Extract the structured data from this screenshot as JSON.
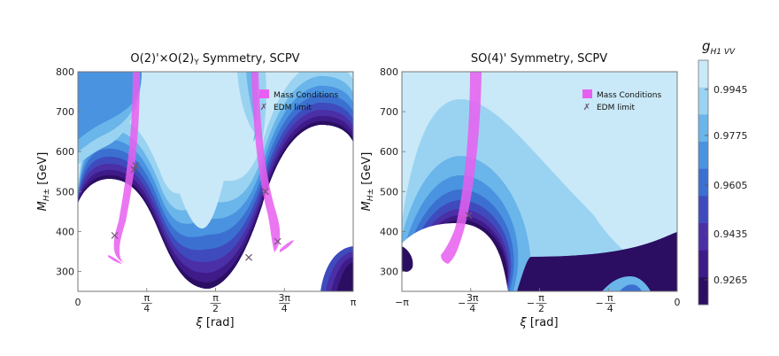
{
  "chart_data": [
    {
      "type": "contour",
      "title": "O(2)'×O(2)_Y Symmetry, SCPV",
      "xlabel": "ξ [rad]",
      "ylabel": "M_H± [GeV]",
      "xlim": [
        0,
        3.1416
      ],
      "ylim": [
        250,
        800
      ],
      "x_ticks": [
        {
          "value": 0,
          "label": "0"
        },
        {
          "value": 0.7854,
          "label": "π/4"
        },
        {
          "value": 1.5708,
          "label": "π/2"
        },
        {
          "value": 2.3562,
          "label": "3π/4"
        },
        {
          "value": 3.1416,
          "label": "π"
        }
      ],
      "y_ticks": [
        {
          "value": 300,
          "label": "300"
        },
        {
          "value": 400,
          "label": "400"
        },
        {
          "value": 500,
          "label": "500"
        },
        {
          "value": 600,
          "label": "600"
        },
        {
          "value": 700,
          "label": "700"
        },
        {
          "value": 800,
          "label": "800"
        }
      ],
      "legend": {
        "mass": "Mass Conditions",
        "edm": "EDM limit",
        "placement": "top-right"
      },
      "edm_points": [
        {
          "x": 0.42,
          "y": 390
        },
        {
          "x": 0.64,
          "y": 555
        },
        {
          "x": 0.66,
          "y": 565
        },
        {
          "x": 2.14,
          "y": 500
        },
        {
          "x": 1.95,
          "y": 335
        },
        {
          "x": 2.28,
          "y": 375
        }
      ]
    },
    {
      "type": "contour",
      "title": "SO(4)' Symmetry, SCPV",
      "xlabel": "ξ [rad]",
      "ylabel": "M_H± [GeV]",
      "xlim": [
        -3.1416,
        0
      ],
      "ylim": [
        250,
        800
      ],
      "x_ticks": [
        {
          "value": -3.1416,
          "label": "−π"
        },
        {
          "value": -2.3562,
          "label": "−3π/4"
        },
        {
          "value": -1.5708,
          "label": "−π/2"
        },
        {
          "value": -0.7854,
          "label": "−π/4"
        },
        {
          "value": 0,
          "label": "0"
        }
      ],
      "y_ticks": [
        {
          "value": 300,
          "label": "300"
        },
        {
          "value": 400,
          "label": "400"
        },
        {
          "value": 500,
          "label": "500"
        },
        {
          "value": 600,
          "label": "600"
        },
        {
          "value": 700,
          "label": "700"
        },
        {
          "value": 800,
          "label": "800"
        }
      ],
      "legend": {
        "mass": "Mass Conditions",
        "edm": "EDM limit",
        "placement": "top-right"
      },
      "edm_points": [
        {
          "x": -2.38,
          "y": 440
        }
      ]
    }
  ],
  "colorbar": {
    "title": "g_{H1 VV}",
    "ticks": [
      "0.9945",
      "0.9775",
      "0.9605",
      "0.9435",
      "0.9265"
    ],
    "colors": [
      "#c9e9f8",
      "#9ad3f1",
      "#6ab5ea",
      "#4a93e0",
      "#3b70d0",
      "#3f4bbd",
      "#4a2fa6",
      "#3e1b88",
      "#2b0e62"
    ]
  },
  "colors": {
    "mass_band": "#e85ef0",
    "edm_marker": "#6e5470",
    "frame": "#777777"
  }
}
